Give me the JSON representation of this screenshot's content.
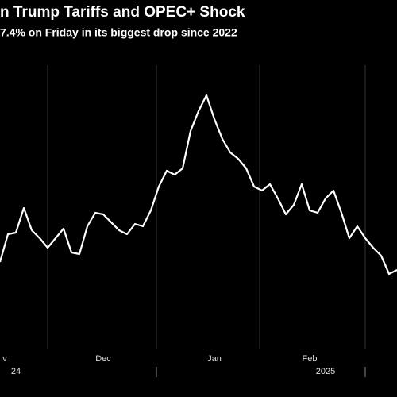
{
  "chart_data": {
    "type": "line",
    "title": "n Trump Tariffs and OPEC+ Shock",
    "subtitle": "7.4% on Friday in its biggest drop since 2022",
    "categories": [
      "v",
      null,
      null,
      null,
      null,
      null,
      null,
      null,
      null,
      null,
      null,
      null,
      null,
      "Dec",
      null,
      null,
      null,
      null,
      null,
      null,
      null,
      null,
      null,
      null,
      null,
      null,
      null,
      "Jan",
      null,
      null,
      null,
      null,
      null,
      null,
      null,
      null,
      null,
      null,
      null,
      "Feb",
      null,
      null,
      null,
      null,
      null,
      null,
      null,
      null,
      null,
      null,
      null
    ],
    "year_categories": [
      "24",
      null,
      null,
      null,
      null,
      null,
      null,
      null,
      null,
      null,
      null,
      null,
      null,
      null,
      null,
      null,
      null,
      null,
      null,
      null,
      null,
      null,
      null,
      null,
      null,
      null,
      null,
      null,
      null,
      null,
      null,
      null,
      null,
      null,
      null,
      null,
      null,
      null,
      null,
      "2025",
      null,
      null,
      null,
      null,
      null,
      null,
      null,
      null,
      null,
      null,
      null
    ],
    "values": [
      100,
      135,
      137,
      168,
      140,
      130,
      118,
      130,
      142,
      112,
      110,
      145,
      162,
      160,
      150,
      140,
      135,
      148,
      145,
      165,
      195,
      215,
      210,
      218,
      265,
      290,
      310,
      280,
      255,
      238,
      230,
      218,
      195,
      190,
      198,
      180,
      160,
      172,
      198,
      165,
      162,
      180,
      190,
      162,
      130,
      145,
      130,
      118,
      108,
      85,
      90
    ],
    "color": "#ffffff",
    "ylim": [
      0,
      350
    ]
  }
}
